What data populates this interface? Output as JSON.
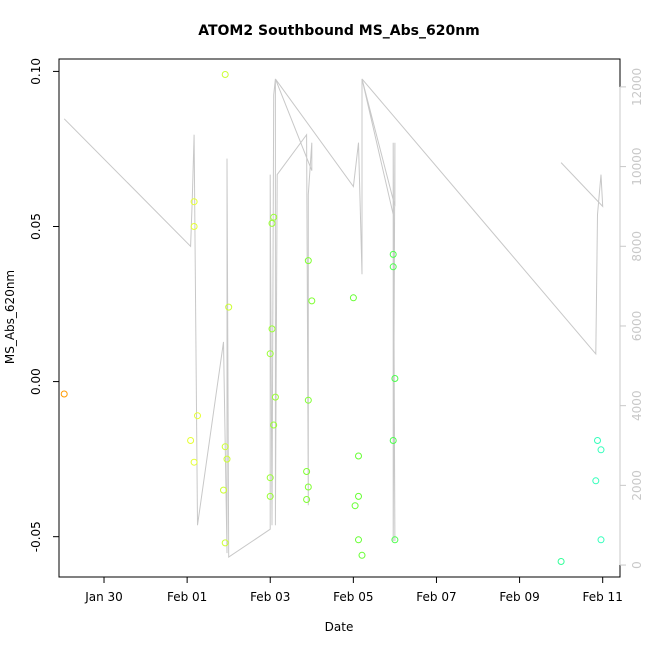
{
  "chart_data": {
    "type": "scatter",
    "title": "ATOM2 Southbound MS_Abs_620nm",
    "xlabel": "Date",
    "ylabel": "MS_Abs_620nm",
    "x_ticks": [
      {
        "value": "2000-01-30",
        "label": "Jan 30"
      },
      {
        "value": "2000-02-01",
        "label": "Feb 01"
      },
      {
        "value": "2000-02-03",
        "label": "Feb 03"
      },
      {
        "value": "2000-02-05",
        "label": "Feb 05"
      },
      {
        "value": "2000-02-07",
        "label": "Feb 07"
      },
      {
        "value": "2000-02-09",
        "label": "Feb 09"
      },
      {
        "value": "2000-02-11",
        "label": "Feb 11"
      }
    ],
    "y_ticks": [
      "-0.05",
      "0.00",
      "0.05",
      "0.10"
    ],
    "y_right_ticks": [
      "0",
      "2000",
      "4000",
      "6000",
      "8000",
      "10000",
      "12000"
    ],
    "xlim": [
      "2000-01-28T22:00",
      "2000-02-11T10:00"
    ],
    "ylim": [
      -0.063,
      0.104
    ],
    "y_right_lim": [
      -300,
      12700
    ],
    "colors": {
      "grey_line": "#c8c8c8",
      "axis": "#000000"
    },
    "points": [
      {
        "x": "2000-01-29T01:00",
        "y": -0.004,
        "color": "#ff9a00"
      },
      {
        "x": "2000-02-01T02:00",
        "y": -0.019,
        "color": "#e6ff33"
      },
      {
        "x": "2000-02-01T04:00",
        "y": 0.058,
        "color": "#e6ff33"
      },
      {
        "x": "2000-02-01T04:00",
        "y": 0.05,
        "color": "#e6ff33"
      },
      {
        "x": "2000-02-01T04:00",
        "y": -0.026,
        "color": "#e6ff33"
      },
      {
        "x": "2000-02-01T06:00",
        "y": -0.011,
        "color": "#e6ff33"
      },
      {
        "x": "2000-02-01T21:00",
        "y": -0.035,
        "color": "#ccff33"
      },
      {
        "x": "2000-02-01T22:00",
        "y": 0.099,
        "color": "#ccff33"
      },
      {
        "x": "2000-02-01T22:00",
        "y": -0.021,
        "color": "#ccff33"
      },
      {
        "x": "2000-02-01T22:00",
        "y": -0.052,
        "color": "#ccff33"
      },
      {
        "x": "2000-02-01T23:00",
        "y": -0.025,
        "color": "#ccff33"
      },
      {
        "x": "2000-02-02T00:00",
        "y": 0.024,
        "color": "#ccff33"
      },
      {
        "x": "2000-02-03T00:00",
        "y": 0.009,
        "color": "#99ff33"
      },
      {
        "x": "2000-02-03T00:00",
        "y": -0.031,
        "color": "#99ff33"
      },
      {
        "x": "2000-02-03T00:00",
        "y": -0.037,
        "color": "#99ff33"
      },
      {
        "x": "2000-02-03T01:00",
        "y": 0.051,
        "color": "#99ff33"
      },
      {
        "x": "2000-02-03T01:00",
        "y": 0.017,
        "color": "#99ff33"
      },
      {
        "x": "2000-02-03T02:00",
        "y": 0.053,
        "color": "#99ff33"
      },
      {
        "x": "2000-02-03T02:00",
        "y": -0.014,
        "color": "#99ff33"
      },
      {
        "x": "2000-02-03T03:00",
        "y": -0.005,
        "color": "#99ff33"
      },
      {
        "x": "2000-02-03T21:00",
        "y": -0.029,
        "color": "#80ff33"
      },
      {
        "x": "2000-02-03T21:00",
        "y": -0.038,
        "color": "#80ff33"
      },
      {
        "x": "2000-02-03T22:00",
        "y": 0.039,
        "color": "#80ff33"
      },
      {
        "x": "2000-02-03T22:00",
        "y": -0.034,
        "color": "#80ff33"
      },
      {
        "x": "2000-02-03T22:00",
        "y": -0.006,
        "color": "#80ff33"
      },
      {
        "x": "2000-02-04T00:00",
        "y": 0.026,
        "color": "#80ff33"
      },
      {
        "x": "2000-02-05T00:00",
        "y": 0.027,
        "color": "#66ff33"
      },
      {
        "x": "2000-02-05T01:00",
        "y": -0.04,
        "color": "#66ff33"
      },
      {
        "x": "2000-02-05T03:00",
        "y": -0.037,
        "color": "#66ff33"
      },
      {
        "x": "2000-02-05T03:00",
        "y": -0.051,
        "color": "#66ff33"
      },
      {
        "x": "2000-02-05T03:00",
        "y": -0.024,
        "color": "#66ff33"
      },
      {
        "x": "2000-02-05T05:00",
        "y": -0.056,
        "color": "#66ff33"
      },
      {
        "x": "2000-02-05T23:00",
        "y": 0.041,
        "color": "#4dff4d"
      },
      {
        "x": "2000-02-05T23:00",
        "y": 0.037,
        "color": "#4dff4d"
      },
      {
        "x": "2000-02-06T00:00",
        "y": 0.001,
        "color": "#4dff4d"
      },
      {
        "x": "2000-02-05T23:00",
        "y": -0.019,
        "color": "#4dff4d"
      },
      {
        "x": "2000-02-06T00:00",
        "y": -0.051,
        "color": "#4dff4d"
      },
      {
        "x": "2000-02-10T00:00",
        "y": -0.058,
        "color": "#33ff99"
      },
      {
        "x": "2000-02-10T20:00",
        "y": -0.032,
        "color": "#33ffbb"
      },
      {
        "x": "2000-02-10T21:00",
        "y": -0.019,
        "color": "#33ffbb"
      },
      {
        "x": "2000-02-10T23:00",
        "y": -0.022,
        "color": "#33ffbb"
      },
      {
        "x": "2000-02-10T23:00",
        "y": -0.051,
        "color": "#33ffbb"
      }
    ],
    "line": [
      {
        "x": "2000-01-29T01:00",
        "y2": 11200
      },
      {
        "x": "2000-02-01T02:00",
        "y2": 8000
      },
      {
        "x": "2000-02-01T03:00",
        "y2": 9200
      },
      {
        "x": "2000-02-01T04:00",
        "y2": 10800
      },
      {
        "x": "2000-02-01T06:00",
        "y2": 1000
      },
      {
        "x": "2000-02-01T21:00",
        "y2": 5600
      },
      {
        "x": "2000-02-01T23:00",
        "y2": 300
      },
      {
        "x": "2000-02-01T23:00",
        "y2": 10200
      },
      {
        "x": "2000-02-02T00:00",
        "y2": 200
      },
      {
        "x": "2000-02-03T00:00",
        "y2": 900
      },
      {
        "x": "2000-02-03T00:00",
        "y2": 9800
      },
      {
        "x": "2000-02-03T01:00",
        "y2": 1000
      },
      {
        "x": "2000-02-03T02:00",
        "y2": 11800
      },
      {
        "x": "2000-02-03T03:00",
        "y2": 12200
      },
      {
        "x": "2000-02-03T03:00",
        "y2": 1000
      },
      {
        "x": "2000-02-03T04:00",
        "y2": 9800
      },
      {
        "x": "2000-02-03T21:00",
        "y2": 10800
      },
      {
        "x": "2000-02-03T22:00",
        "y2": 1500
      },
      {
        "x": "2000-02-03T22:00",
        "y2": 9300
      },
      {
        "x": "2000-02-04T00:00",
        "y2": 10600
      },
      {
        "x": "2000-02-04T00:00",
        "y2": 9900
      },
      {
        "x": "2000-02-03T03:00",
        "y2": 12200
      },
      {
        "x": "2000-02-05T00:00",
        "y2": 9500
      },
      {
        "x": "2000-02-05T03:00",
        "y2": 10600
      },
      {
        "x": "2000-02-05T05:00",
        "y2": 7300
      },
      {
        "x": "2000-02-05T05:00",
        "y2": 12200
      },
      {
        "x": "2000-02-05T23:00",
        "y2": 8800
      },
      {
        "x": "2000-02-05T23:00",
        "y2": 600
      },
      {
        "x": "2000-02-05T23:00",
        "y2": 10600
      },
      {
        "x": "2000-02-06T00:00",
        "y2": 600
      },
      {
        "x": "2000-02-05T23:00",
        "y2": 8600
      },
      {
        "x": "2000-02-05T23:00",
        "y2": 600
      },
      {
        "x": "2000-02-06T00:00",
        "y2": 10600
      },
      {
        "x": "2000-02-06T00:00",
        "y2": 9000
      },
      {
        "x": "2000-02-05T05:00",
        "y2": 12200
      },
      {
        "x": "2000-02-10T20:00",
        "y2": 5300
      },
      {
        "x": "2000-02-10T21:00",
        "y2": 8800
      },
      {
        "x": "2000-02-10T23:00",
        "y2": 9800
      },
      {
        "x": "2000-02-11T00:00",
        "y2": 9000
      },
      {
        "x": "2000-02-10T00:00",
        "y2": 10100
      }
    ],
    "grid": false,
    "legend": "none"
  }
}
